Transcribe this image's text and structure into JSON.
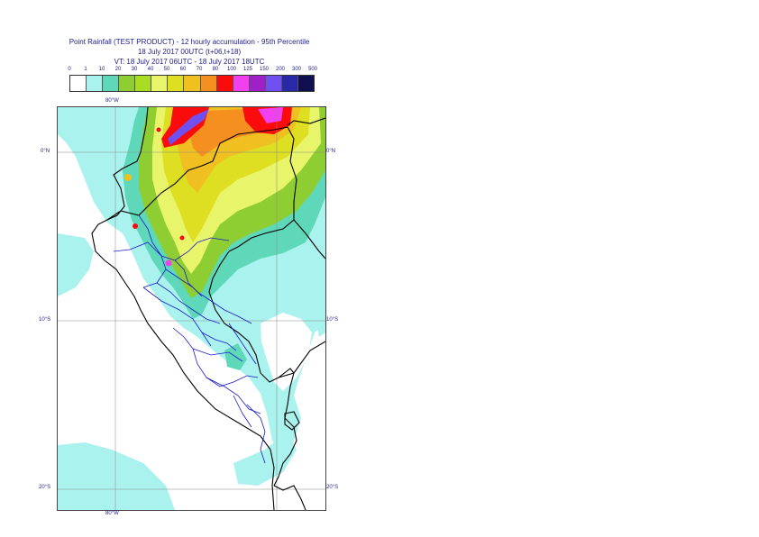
{
  "title": {
    "line1": "Point Rainfall (TEST PRODUCT) - 12 hourly accumulation - 95th Percentile",
    "line2": "18 July 2017 00UTC (t+06,t+18)",
    "line3": "VT: 18 July 2017 06UTC - 18 July 2017 18UTC"
  },
  "legend": {
    "labels": [
      "0",
      "1",
      "10",
      "20",
      "30",
      "40",
      "50",
      "60",
      "70",
      "80",
      "100",
      "125",
      "150",
      "200",
      "300",
      "500"
    ],
    "colors": [
      "#ffffff",
      "#aaf2ee",
      "#5ed8b8",
      "#8fce33",
      "#a8dd22",
      "#e8f56a",
      "#dede22",
      "#f0c020",
      "#f59020",
      "#fb0c0c",
      "#f040f0",
      "#a020c8",
      "#7050f0",
      "#2828a8",
      "#101050"
    ]
  },
  "map": {
    "lat_labels": [
      "0°N",
      "10°S",
      "20°S"
    ],
    "lon_labels_top": [
      "80°W"
    ],
    "lon_labels_bottom": [
      "80°W"
    ]
  }
}
